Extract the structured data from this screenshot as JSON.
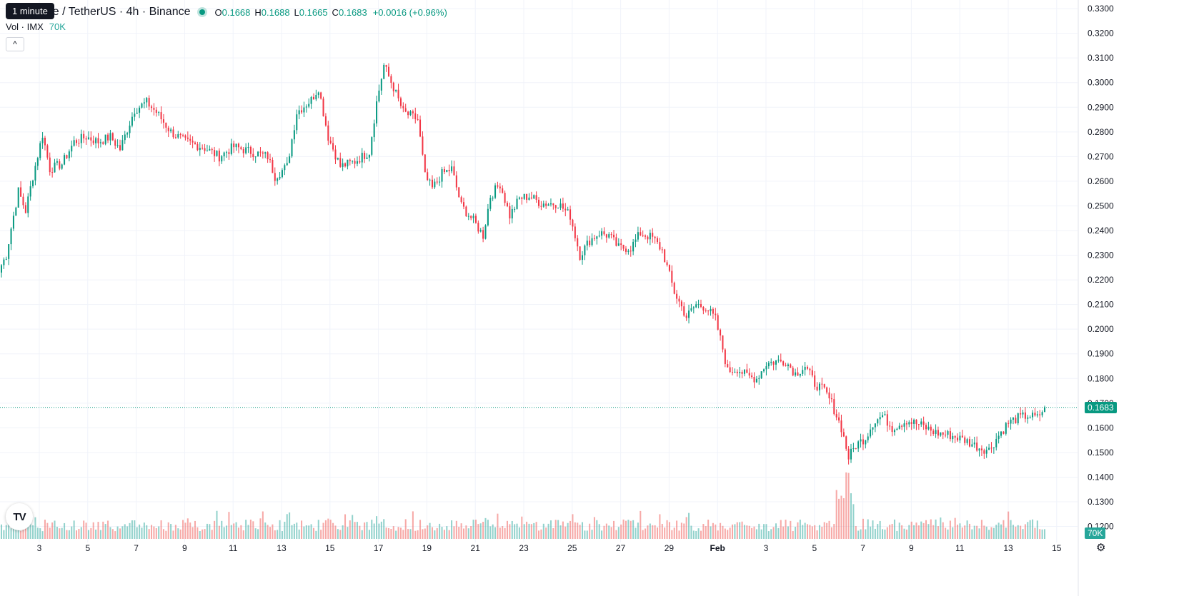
{
  "header": {
    "symbol_text": "Immutable / TetherUS · 4h · Binance",
    "tooltip": "1 minute",
    "o_label": "O",
    "o_value": "0.1668",
    "h_label": "H",
    "h_value": "0.1688",
    "l_label": "L",
    "l_value": "0.1665",
    "c_label": "C",
    "c_value": "0.1683",
    "change": "+0.0016 (+0.96%)"
  },
  "volume_legend": {
    "label": "Vol · IMX",
    "value": "70K"
  },
  "controls": {
    "collapse": "^",
    "settings_icon": "gear-icon",
    "logo": "TV"
  },
  "colors": {
    "up": "#089981",
    "down": "#f23645",
    "vol_up": "#26a69a",
    "vol_down": "#ef5350",
    "grid": "#f0f3fa",
    "last_price": "#089981"
  },
  "current_price_label": "0.1683",
  "volume_axis_label": "70K",
  "chart_data": {
    "type": "candlestick",
    "title": "",
    "xlabel": "",
    "ylabel": "",
    "ylim": [
      0.1135,
      0.3335
    ],
    "y_ticks": [
      "0.3300",
      "0.3200",
      "0.3100",
      "0.3000",
      "0.2900",
      "0.2800",
      "0.2700",
      "0.2600",
      "0.2500",
      "0.2400",
      "0.2300",
      "0.2200",
      "0.2100",
      "0.2000",
      "0.1900",
      "0.1800",
      "0.1700",
      "0.1600",
      "0.1500",
      "0.1400",
      "0.1300",
      "0.1200"
    ],
    "x_ticks": [
      "3",
      "5",
      "7",
      "9",
      "11",
      "13",
      "15",
      "17",
      "19",
      "21",
      "23",
      "25",
      "27",
      "29",
      "Feb",
      "3",
      "5",
      "7",
      "9",
      "11",
      "13",
      "15"
    ],
    "grid": true,
    "last_price": 0.1683,
    "series": [
      {
        "kind": "price",
        "anchors": [
          [
            0,
            0.226
          ],
          [
            2,
            0.23
          ],
          [
            4,
            0.241
          ],
          [
            7,
            0.256
          ],
          [
            10,
            0.248
          ],
          [
            13,
            0.262
          ],
          [
            17,
            0.279
          ],
          [
            20,
            0.265
          ],
          [
            25,
            0.267
          ],
          [
            30,
            0.276
          ],
          [
            35,
            0.278
          ],
          [
            40,
            0.276
          ],
          [
            45,
            0.278
          ],
          [
            49,
            0.273
          ],
          [
            55,
            0.289
          ],
          [
            60,
            0.292
          ],
          [
            64,
            0.288
          ],
          [
            70,
            0.28
          ],
          [
            76,
            0.276
          ],
          [
            83,
            0.274
          ],
          [
            90,
            0.27
          ],
          [
            96,
            0.274
          ],
          [
            103,
            0.272
          ],
          [
            110,
            0.27
          ],
          [
            113,
            0.262
          ],
          [
            118,
            0.266
          ],
          [
            122,
            0.288
          ],
          [
            128,
            0.293
          ],
          [
            131,
            0.298
          ],
          [
            135,
            0.278
          ],
          [
            140,
            0.266
          ],
          [
            146,
            0.268
          ],
          [
            152,
            0.272
          ],
          [
            155,
            0.292
          ],
          [
            158,
            0.307
          ],
          [
            162,
            0.298
          ],
          [
            166,
            0.288
          ],
          [
            172,
            0.285
          ],
          [
            175,
            0.262
          ],
          [
            178,
            0.257
          ],
          [
            182,
            0.263
          ],
          [
            186,
            0.265
          ],
          [
            190,
            0.25
          ],
          [
            195,
            0.244
          ],
          [
            199,
            0.238
          ],
          [
            202,
            0.254
          ],
          [
            206,
            0.259
          ],
          [
            210,
            0.246
          ],
          [
            214,
            0.253
          ],
          [
            218,
            0.254
          ],
          [
            223,
            0.251
          ],
          [
            230,
            0.251
          ],
          [
            235,
            0.246
          ],
          [
            239,
            0.23
          ],
          [
            243,
            0.236
          ],
          [
            247,
            0.239
          ],
          [
            251,
            0.238
          ],
          [
            255,
            0.233
          ],
          [
            260,
            0.233
          ],
          [
            264,
            0.239
          ],
          [
            269,
            0.237
          ],
          [
            273,
            0.232
          ],
          [
            278,
            0.215
          ],
          [
            283,
            0.205
          ],
          [
            287,
            0.21
          ],
          [
            291,
            0.209
          ],
          [
            295,
            0.204
          ],
          [
            298,
            0.192
          ],
          [
            300,
            0.183
          ],
          [
            304,
            0.184
          ],
          [
            308,
            0.181
          ],
          [
            312,
            0.18
          ],
          [
            316,
            0.186
          ],
          [
            320,
            0.187
          ],
          [
            324,
            0.187
          ],
          [
            328,
            0.182
          ],
          [
            332,
            0.185
          ],
          [
            336,
            0.178
          ],
          [
            340,
            0.175
          ],
          [
            343,
            0.17
          ],
          [
            347,
            0.16
          ],
          [
            350,
            0.148
          ],
          [
            353,
            0.153
          ],
          [
            357,
            0.156
          ],
          [
            360,
            0.162
          ],
          [
            364,
            0.165
          ],
          [
            368,
            0.16
          ],
          [
            374,
            0.163
          ],
          [
            380,
            0.161
          ],
          [
            386,
            0.158
          ],
          [
            392,
            0.157
          ],
          [
            398,
            0.155
          ],
          [
            404,
            0.152
          ],
          [
            408,
            0.151
          ],
          [
            412,
            0.157
          ],
          [
            416,
            0.162
          ],
          [
            420,
            0.164
          ],
          [
            424,
            0.165
          ],
          [
            428,
            0.164
          ],
          [
            431,
            0.1683
          ]
        ]
      },
      {
        "kind": "volume",
        "note": "volume bars scale 0-70K",
        "ylim": [
          0,
          70000
        ]
      }
    ]
  }
}
